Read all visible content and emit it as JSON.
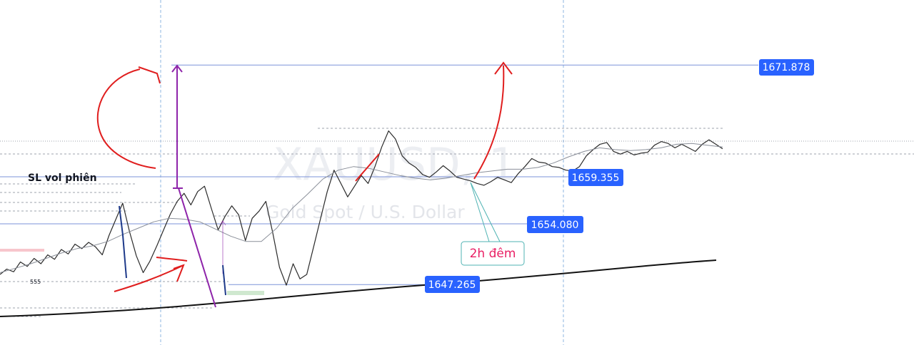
{
  "chart_data": {
    "type": "line",
    "symbol": "XAUUSD, 1",
    "description": "Gold Spot / U.S. Dollar",
    "ylim": [
      1645.2,
      1675.0
    ],
    "price_labels": [
      "1671.878",
      "1659.355",
      "1654.080",
      "1647.265"
    ],
    "levels": {
      "target": 1671.878,
      "upper": 1659.355,
      "mid": 1654.08,
      "lower": 1647.265
    },
    "series": [
      {
        "values": [
          1648.4,
          1649.0,
          1648.7,
          1649.8,
          1649.3,
          1650.2,
          1649.6,
          1650.6,
          1650.1,
          1651.2,
          1650.7,
          1651.8,
          1651.3,
          1652.0,
          1651.5,
          1650.6,
          1652.8,
          1654.6,
          1656.4,
          1653.2,
          1650.5,
          1648.6,
          1649.9,
          1651.6,
          1653.4,
          1655.2,
          1656.6,
          1657.5,
          1656.2,
          1657.7,
          1658.3,
          1655.8,
          1653.4,
          1654.9,
          1656.1,
          1655.1,
          1652.2,
          1654.7,
          1655.5,
          1656.6,
          1653.1,
          1649.2,
          1647.2,
          1649.6,
          1647.9,
          1648.4,
          1651.5,
          1654.6,
          1657.7,
          1660.1,
          1658.6,
          1657.1,
          1658.3,
          1659.5,
          1658.6,
          1660.5,
          1662.7,
          1664.5,
          1663.6,
          1661.7,
          1660.9,
          1660.4,
          1659.6,
          1659.3,
          1659.9,
          1660.6,
          1660.0,
          1659.3,
          1659.1,
          1658.9,
          1658.6,
          1658.4,
          1658.8,
          1659.3,
          1659.0,
          1658.7,
          1659.7,
          1660.5,
          1661.4,
          1661.0,
          1660.9,
          1660.5,
          1660.4,
          1660.1,
          1660.0,
          1660.5,
          1661.7,
          1662.4,
          1663.0,
          1663.2,
          1662.2,
          1661.9,
          1662.2,
          1661.8,
          1662.0,
          1662.1,
          1662.9,
          1663.3,
          1663.1,
          1662.6,
          1663.0,
          1662.6,
          1662.2,
          1663.0,
          1663.5,
          1663.0,
          1662.5
        ]
      },
      {
        "values": [
          1648.6,
          1649.1,
          1649.6,
          1650.2,
          1650.8,
          1651.3,
          1651.6,
          1652.1,
          1652.9,
          1653.6,
          1654.3,
          1654.7,
          1654.6,
          1654.3,
          1653.5,
          1652.7,
          1652.1,
          1652.1,
          1653.6,
          1655.8,
          1657.4,
          1659.1,
          1660.1,
          1660.5,
          1660.3,
          1659.9,
          1659.5,
          1659.2,
          1659.0,
          1659.2,
          1659.5,
          1659.8,
          1660.0,
          1660.2,
          1660.2,
          1660.4,
          1660.9,
          1661.6,
          1662.2,
          1662.6,
          1662.4,
          1662.3,
          1662.4,
          1662.6,
          1663.0,
          1663.1,
          1662.9,
          1662.7
        ]
      }
    ],
    "annotations": [
      "SL vol phiên",
      "2h đêm",
      "555"
    ]
  },
  "colors": {
    "price_tag": "#2962ff",
    "blue_level": "#7b93d9",
    "dotted_level": "#9ea3ad",
    "vertical_line": "#8db4e2",
    "purple": "#8e24aa",
    "red": "#e01e1e",
    "navy": "#1e3a8a",
    "trendline": "#111111",
    "callout_border": "#4fb3b3",
    "callout_text": "#e91e63",
    "pink_zone": "#f7c6cc",
    "green_zone": "#cfe8cf"
  }
}
